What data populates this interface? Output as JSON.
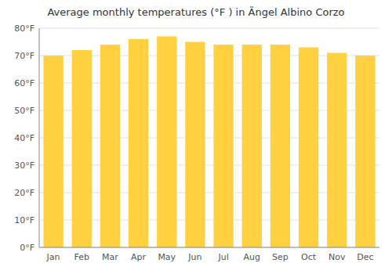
{
  "chart_data": {
    "type": "bar",
    "title": "Average monthly temperatures (°F ) in Ãngel Albino Corzo",
    "categories": [
      "Jan",
      "Feb",
      "Mar",
      "Apr",
      "May",
      "Jun",
      "Jul",
      "Aug",
      "Sep",
      "Oct",
      "Nov",
      "Dec"
    ],
    "values": [
      70,
      72,
      74,
      76,
      77,
      75,
      74,
      74,
      74,
      73,
      71,
      70
    ],
    "color": "#FFD040",
    "ylim": [
      0,
      80
    ],
    "yticks": [
      {
        "value": 0,
        "label": "0°F"
      },
      {
        "value": 10,
        "label": "10°F"
      },
      {
        "value": 20,
        "label": "20°F"
      },
      {
        "value": 30,
        "label": "30°F"
      },
      {
        "value": 40,
        "label": "40°F"
      },
      {
        "value": 50,
        "label": "50°F"
      },
      {
        "value": 60,
        "label": "60°F"
      },
      {
        "value": 70,
        "label": "70°F"
      },
      {
        "value": 80,
        "label": "80°F"
      }
    ],
    "grid": true
  }
}
